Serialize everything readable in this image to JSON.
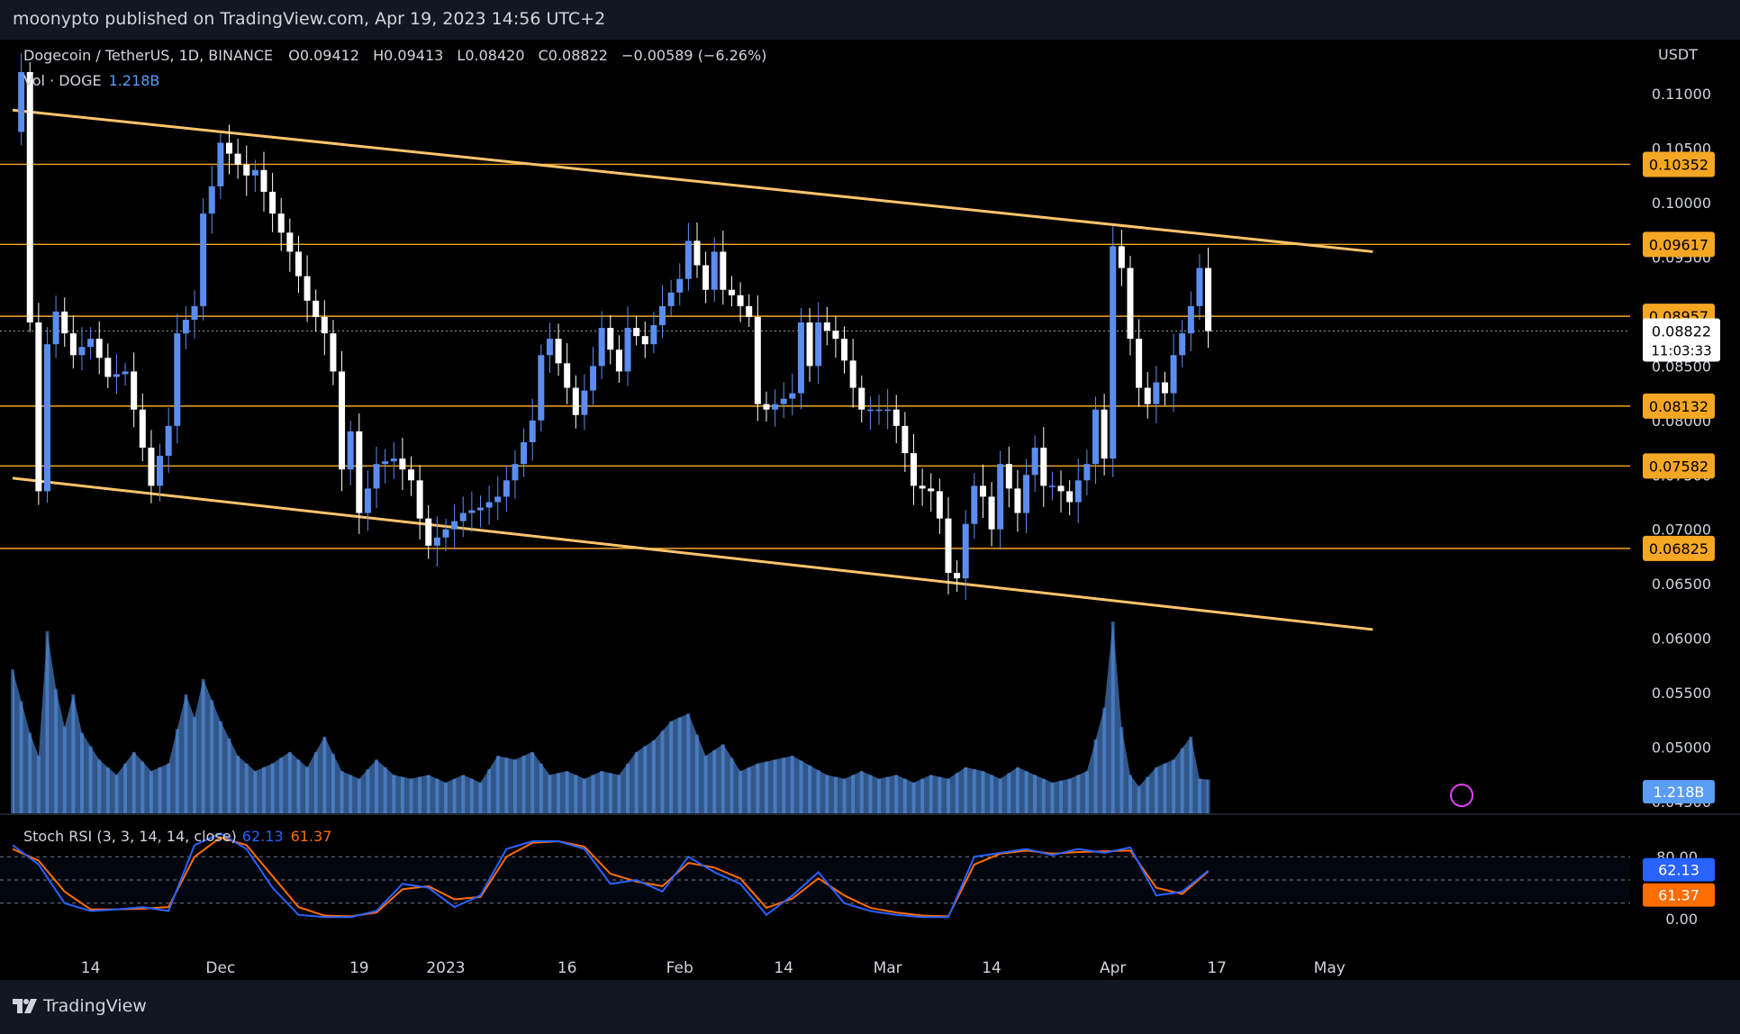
{
  "publisher": "moonypto published on TradingView.com, Apr 19, 2023 14:56 UTC+2",
  "footer_brand": "TradingView",
  "colors": {
    "bull": "#5b8def",
    "bear": "#ffffff",
    "level": "#f5a623",
    "channel": "#ffc46b",
    "volume": "#5b9cf6",
    "stoch_k": "#2962ff",
    "stoch_d": "#ff6d00",
    "bg": "#000000"
  },
  "legend": {
    "pair": "Dogecoin / TetherUS, 1D, BINANCE",
    "open_label": "O",
    "open": "0.09412",
    "high_label": "H",
    "high": "0.09413",
    "low_label": "L",
    "low": "0.08420",
    "close_label": "C",
    "close": "0.08822",
    "change": "−0.00589 (−6.26%)",
    "volume_label": "Vol · DOGE",
    "volume": "1.218B"
  },
  "stoch_legend": {
    "label": "Stoch RSI (3, 3, 14, 14, close)",
    "k": "62.13",
    "d": "61.37"
  },
  "chart_data": {
    "type": "candlestick",
    "symbol": "DOGEUSDT",
    "timeframe": "1D",
    "currency": "USDT",
    "ylim": [
      0.0445,
      0.1115
    ],
    "y_ticks": [
      "0.11000",
      "0.10500",
      "0.10000",
      "0.09500",
      "0.09000",
      "0.08500",
      "0.08000",
      "0.07500",
      "0.07000",
      "0.06500",
      "0.06000",
      "0.05500",
      "0.05000",
      "0.04500"
    ],
    "x_ticks": [
      "14",
      "Dec",
      "19",
      "2023",
      "16",
      "Feb",
      "14",
      "Mar",
      "14",
      "Apr",
      "17",
      "May"
    ],
    "levels": [
      {
        "value": 0.10352,
        "label": "0.10352"
      },
      {
        "value": 0.09617,
        "label": "0.09617"
      },
      {
        "value": 0.08957,
        "label": "0.08957"
      },
      {
        "value": 0.08132,
        "label": "0.08132"
      },
      {
        "value": 0.07582,
        "label": "0.07582"
      },
      {
        "value": 0.06825,
        "label": "0.06825"
      }
    ],
    "last_price": {
      "value": 0.08822,
      "label": "0.08822",
      "countdown": "11:03:33"
    },
    "channel_upper": [
      [
        0,
        0.1085
      ],
      [
        157,
        0.0955
      ]
    ],
    "channel_lower": [
      [
        0,
        0.0747
      ],
      [
        157,
        0.0608
      ]
    ],
    "candle_count": 137,
    "candle_anchors": [
      [
        0,
        0.1065
      ],
      [
        1,
        0.112
      ],
      [
        2,
        0.089
      ],
      [
        3,
        0.0735
      ],
      [
        4,
        0.087
      ],
      [
        5,
        0.09
      ],
      [
        7,
        0.086
      ],
      [
        9,
        0.0875
      ],
      [
        11,
        0.084
      ],
      [
        13,
        0.0845
      ],
      [
        15,
        0.0775
      ],
      [
        16,
        0.074
      ],
      [
        18,
        0.0795
      ],
      [
        19,
        0.088
      ],
      [
        21,
        0.0905
      ],
      [
        22,
        0.099
      ],
      [
        23,
        0.1015
      ],
      [
        24,
        0.1055
      ],
      [
        25,
        0.1045
      ],
      [
        27,
        0.1025
      ],
      [
        28,
        0.103
      ],
      [
        30,
        0.099
      ],
      [
        32,
        0.0955
      ],
      [
        34,
        0.091
      ],
      [
        36,
        0.088
      ],
      [
        37,
        0.0845
      ],
      [
        38,
        0.0755
      ],
      [
        39,
        0.079
      ],
      [
        40,
        0.0715
      ],
      [
        42,
        0.076
      ],
      [
        44,
        0.0765
      ],
      [
        46,
        0.0745
      ],
      [
        47,
        0.071
      ],
      [
        48,
        0.0685
      ],
      [
        50,
        0.07
      ],
      [
        52,
        0.0715
      ],
      [
        54,
        0.072
      ],
      [
        56,
        0.073
      ],
      [
        58,
        0.076
      ],
      [
        60,
        0.08
      ],
      [
        61,
        0.086
      ],
      [
        62,
        0.0875
      ],
      [
        64,
        0.083
      ],
      [
        65,
        0.0805
      ],
      [
        67,
        0.085
      ],
      [
        68,
        0.0885
      ],
      [
        70,
        0.0845
      ],
      [
        71,
        0.0885
      ],
      [
        73,
        0.087
      ],
      [
        75,
        0.0905
      ],
      [
        77,
        0.093
      ],
      [
        78,
        0.0965
      ],
      [
        80,
        0.092
      ],
      [
        81,
        0.0955
      ],
      [
        82,
        0.092
      ],
      [
        83,
        0.0915
      ],
      [
        85,
        0.0895
      ],
      [
        86,
        0.0815
      ],
      [
        87,
        0.081
      ],
      [
        89,
        0.082
      ],
      [
        90,
        0.0825
      ],
      [
        91,
        0.089
      ],
      [
        92,
        0.085
      ],
      [
        93,
        0.089
      ],
      [
        95,
        0.0875
      ],
      [
        96,
        0.0855
      ],
      [
        97,
        0.083
      ],
      [
        98,
        0.081
      ],
      [
        100,
        0.081
      ],
      [
        101,
        0.081
      ],
      [
        102,
        0.0795
      ],
      [
        103,
        0.077
      ],
      [
        104,
        0.074
      ],
      [
        106,
        0.0735
      ],
      [
        107,
        0.071
      ],
      [
        108,
        0.066
      ],
      [
        109,
        0.0655
      ],
      [
        110,
        0.0705
      ],
      [
        111,
        0.074
      ],
      [
        112,
        0.073
      ],
      [
        113,
        0.07
      ],
      [
        114,
        0.076
      ],
      [
        116,
        0.0715
      ],
      [
        117,
        0.075
      ],
      [
        118,
        0.0775
      ],
      [
        119,
        0.074
      ],
      [
        120,
        0.074
      ],
      [
        121,
        0.0735
      ],
      [
        122,
        0.0725
      ],
      [
        123,
        0.0745
      ],
      [
        124,
        0.076
      ],
      [
        125,
        0.081
      ],
      [
        126,
        0.0765
      ],
      [
        127,
        0.096
      ],
      [
        128,
        0.094
      ],
      [
        129,
        0.0875
      ],
      [
        130,
        0.083
      ],
      [
        131,
        0.0815
      ],
      [
        132,
        0.0835
      ],
      [
        133,
        0.0825
      ],
      [
        134,
        0.086
      ],
      [
        135,
        0.088
      ],
      [
        136,
        0.0905
      ],
      [
        137,
        0.094
      ],
      [
        138,
        0.0882
      ]
    ],
    "volume_ticks": [
      "1.218B"
    ],
    "volume_values": [
      [
        0,
        0.75
      ],
      [
        2,
        0.42
      ],
      [
        3,
        0.3
      ],
      [
        4,
        0.95
      ],
      [
        5,
        0.65
      ],
      [
        6,
        0.45
      ],
      [
        7,
        0.62
      ],
      [
        8,
        0.42
      ],
      [
        10,
        0.28
      ],
      [
        12,
        0.2
      ],
      [
        14,
        0.32
      ],
      [
        16,
        0.22
      ],
      [
        18,
        0.26
      ],
      [
        20,
        0.62
      ],
      [
        21,
        0.5
      ],
      [
        22,
        0.7
      ],
      [
        24,
        0.48
      ],
      [
        26,
        0.3
      ],
      [
        28,
        0.22
      ],
      [
        30,
        0.26
      ],
      [
        32,
        0.32
      ],
      [
        34,
        0.24
      ],
      [
        36,
        0.4
      ],
      [
        38,
        0.22
      ],
      [
        40,
        0.18
      ],
      [
        42,
        0.28
      ],
      [
        44,
        0.2
      ],
      [
        46,
        0.18
      ],
      [
        48,
        0.2
      ],
      [
        50,
        0.16
      ],
      [
        52,
        0.2
      ],
      [
        54,
        0.16
      ],
      [
        56,
        0.3
      ],
      [
        58,
        0.28
      ],
      [
        60,
        0.32
      ],
      [
        62,
        0.2
      ],
      [
        64,
        0.22
      ],
      [
        66,
        0.18
      ],
      [
        68,
        0.22
      ],
      [
        70,
        0.2
      ],
      [
        72,
        0.32
      ],
      [
        74,
        0.38
      ],
      [
        76,
        0.48
      ],
      [
        78,
        0.52
      ],
      [
        80,
        0.3
      ],
      [
        82,
        0.36
      ],
      [
        84,
        0.22
      ],
      [
        86,
        0.26
      ],
      [
        88,
        0.28
      ],
      [
        90,
        0.3
      ],
      [
        92,
        0.25
      ],
      [
        94,
        0.2
      ],
      [
        96,
        0.18
      ],
      [
        98,
        0.22
      ],
      [
        100,
        0.18
      ],
      [
        102,
        0.2
      ],
      [
        104,
        0.16
      ],
      [
        106,
        0.2
      ],
      [
        108,
        0.18
      ],
      [
        110,
        0.24
      ],
      [
        112,
        0.22
      ],
      [
        114,
        0.18
      ],
      [
        116,
        0.24
      ],
      [
        118,
        0.2
      ],
      [
        120,
        0.16
      ],
      [
        122,
        0.18
      ],
      [
        124,
        0.22
      ],
      [
        126,
        0.55
      ],
      [
        127,
        1.0
      ],
      [
        128,
        0.45
      ],
      [
        129,
        0.2
      ],
      [
        130,
        0.14
      ],
      [
        132,
        0.24
      ],
      [
        134,
        0.28
      ],
      [
        136,
        0.4
      ],
      [
        137,
        0.18
      ]
    ],
    "stoch_rsi": {
      "ticks": [
        "80.00",
        "0.00"
      ],
      "k_label": "62.13",
      "d_label": "61.37",
      "k": [
        [
          0,
          95
        ],
        [
          3,
          70
        ],
        [
          6,
          20
        ],
        [
          9,
          10
        ],
        [
          12,
          12
        ],
        [
          15,
          15
        ],
        [
          18,
          10
        ],
        [
          21,
          95
        ],
        [
          24,
          110
        ],
        [
          27,
          90
        ],
        [
          30,
          40
        ],
        [
          33,
          5
        ],
        [
          36,
          2
        ],
        [
          39,
          2
        ],
        [
          42,
          10
        ],
        [
          45,
          45
        ],
        [
          48,
          40
        ],
        [
          51,
          15
        ],
        [
          54,
          30
        ],
        [
          57,
          90
        ],
        [
          60,
          100
        ],
        [
          63,
          100
        ],
        [
          66,
          90
        ],
        [
          69,
          45
        ],
        [
          72,
          50
        ],
        [
          75,
          35
        ],
        [
          78,
          80
        ],
        [
          81,
          60
        ],
        [
          84,
          45
        ],
        [
          87,
          5
        ],
        [
          90,
          30
        ],
        [
          93,
          60
        ],
        [
          96,
          20
        ],
        [
          99,
          10
        ],
        [
          102,
          5
        ],
        [
          105,
          2
        ],
        [
          108,
          2
        ],
        [
          111,
          80
        ],
        [
          114,
          85
        ],
        [
          117,
          90
        ],
        [
          120,
          82
        ],
        [
          123,
          90
        ],
        [
          126,
          85
        ],
        [
          129,
          92
        ],
        [
          132,
          30
        ],
        [
          135,
          35
        ],
        [
          138,
          62
        ]
      ],
      "d": [
        [
          0,
          90
        ],
        [
          3,
          75
        ],
        [
          6,
          35
        ],
        [
          9,
          12
        ],
        [
          12,
          12
        ],
        [
          15,
          13
        ],
        [
          18,
          15
        ],
        [
          21,
          80
        ],
        [
          24,
          105
        ],
        [
          27,
          95
        ],
        [
          30,
          55
        ],
        [
          33,
          15
        ],
        [
          36,
          4
        ],
        [
          39,
          3
        ],
        [
          42,
          8
        ],
        [
          45,
          38
        ],
        [
          48,
          42
        ],
        [
          51,
          25
        ],
        [
          54,
          28
        ],
        [
          57,
          80
        ],
        [
          60,
          98
        ],
        [
          63,
          100
        ],
        [
          66,
          93
        ],
        [
          69,
          58
        ],
        [
          72,
          48
        ],
        [
          75,
          42
        ],
        [
          78,
          72
        ],
        [
          81,
          66
        ],
        [
          84,
          52
        ],
        [
          87,
          14
        ],
        [
          90,
          26
        ],
        [
          93,
          52
        ],
        [
          96,
          30
        ],
        [
          99,
          14
        ],
        [
          102,
          8
        ],
        [
          105,
          4
        ],
        [
          108,
          3
        ],
        [
          111,
          70
        ],
        [
          114,
          84
        ],
        [
          117,
          88
        ],
        [
          120,
          84
        ],
        [
          123,
          86
        ],
        [
          126,
          87
        ],
        [
          129,
          88
        ],
        [
          132,
          40
        ],
        [
          135,
          32
        ],
        [
          138,
          61
        ]
      ]
    }
  }
}
